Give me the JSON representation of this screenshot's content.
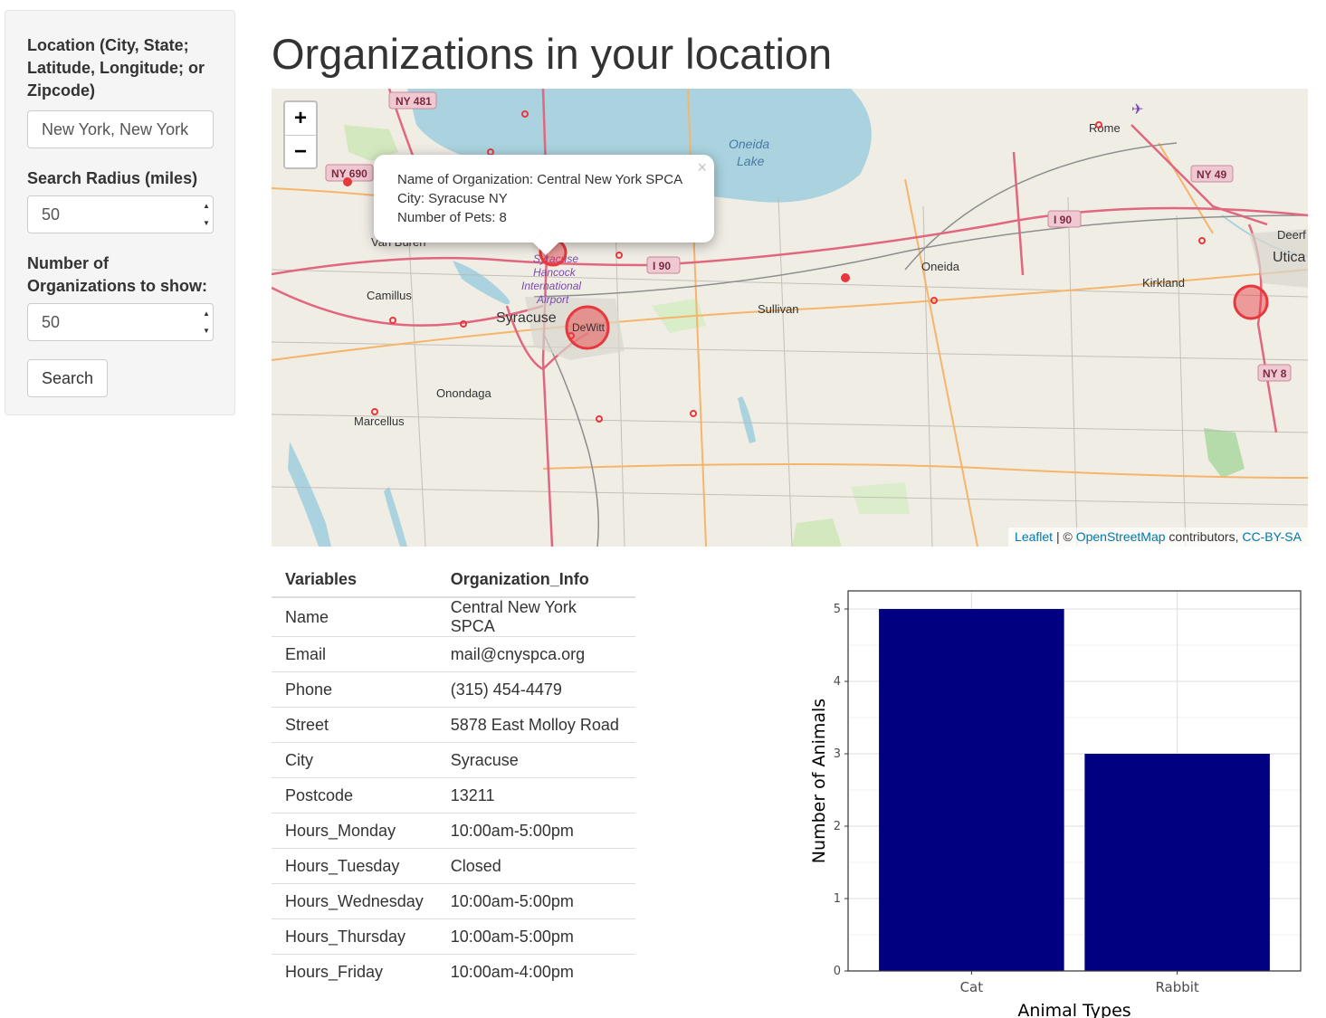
{
  "sidebar": {
    "location_label": "Location (City, State; Latitude, Longitude; or Zipcode)",
    "location_value": "New York, New York",
    "radius_label": "Search Radius (miles)",
    "radius_value": "50",
    "count_label": "Number of Organizations to show:",
    "count_value": "50",
    "search_button": "Search"
  },
  "page_title": "Organizations in your location",
  "map": {
    "zoom_in": "+",
    "zoom_out": "−",
    "popup": {
      "name_line": "Name of Organization: Central New York SPCA",
      "city_line": "City: Syracuse NY",
      "pets_line": "Number of Pets: 8",
      "close": "×"
    },
    "attribution": {
      "leaflet": "Leaflet",
      "sep": " | © ",
      "osm": "OpenStreetMap",
      "contrib": " contributors, ",
      "license": "CC-BY-SA"
    },
    "place_labels": {
      "syracuse": "Syracuse",
      "camillus": "Camillus",
      "onondaga": "Onondaga",
      "marcellus": "Marcellus",
      "sullivan": "Sullivan",
      "oneida": "Oneida",
      "kirkland": "Kirkland",
      "utica": "Utica",
      "rome": "Rome",
      "deerf": "Deerf",
      "dewitt": "DeWitt",
      "oneida_lake": "Oneida",
      "oneida_lake2": "Lake",
      "airport1": "Syracuse",
      "airport2": "Hancock",
      "airport3": "International",
      "airport4": "Airport",
      "vanburen": "Van Buren"
    },
    "road_shields": {
      "ny481": "NY 481",
      "ny690": "NY 690",
      "i90a": "I 90",
      "i90b": "I 90",
      "ny49": "NY 49",
      "ny8": "NY 8"
    }
  },
  "table": {
    "headers": [
      "Variables",
      "Organization_Info"
    ],
    "rows": [
      [
        "Name",
        "Central New York SPCA"
      ],
      [
        "Email",
        "mail@cnyspca.org"
      ],
      [
        "Phone",
        "(315) 454-4479"
      ],
      [
        "Street",
        "5878 East Molloy Road"
      ],
      [
        "City",
        "Syracuse"
      ],
      [
        "Postcode",
        "13211"
      ],
      [
        "Hours_Monday",
        "10:00am-5:00pm"
      ],
      [
        "Hours_Tuesday",
        "Closed"
      ],
      [
        "Hours_Wednesday",
        "10:00am-5:00pm"
      ],
      [
        "Hours_Thursday",
        "10:00am-5:00pm"
      ],
      [
        "Hours_Friday",
        "10:00am-4:00pm"
      ]
    ]
  },
  "chart_data": {
    "type": "bar",
    "categories": [
      "Cat",
      "Rabbit"
    ],
    "values": [
      5,
      3
    ],
    "title": "",
    "xlabel": "Animal Types",
    "ylabel": "Number of Animals",
    "ylim": [
      0,
      5.25
    ],
    "yticks": [
      0,
      1,
      2,
      3,
      4,
      5
    ],
    "bar_color": "#000080",
    "grid": true
  },
  "colors": {
    "marker": "#e8383d",
    "map_bg": "#f0ede5",
    "water": "#aad3df",
    "motorway": "#e0677f",
    "primary": "#f5b56b"
  }
}
